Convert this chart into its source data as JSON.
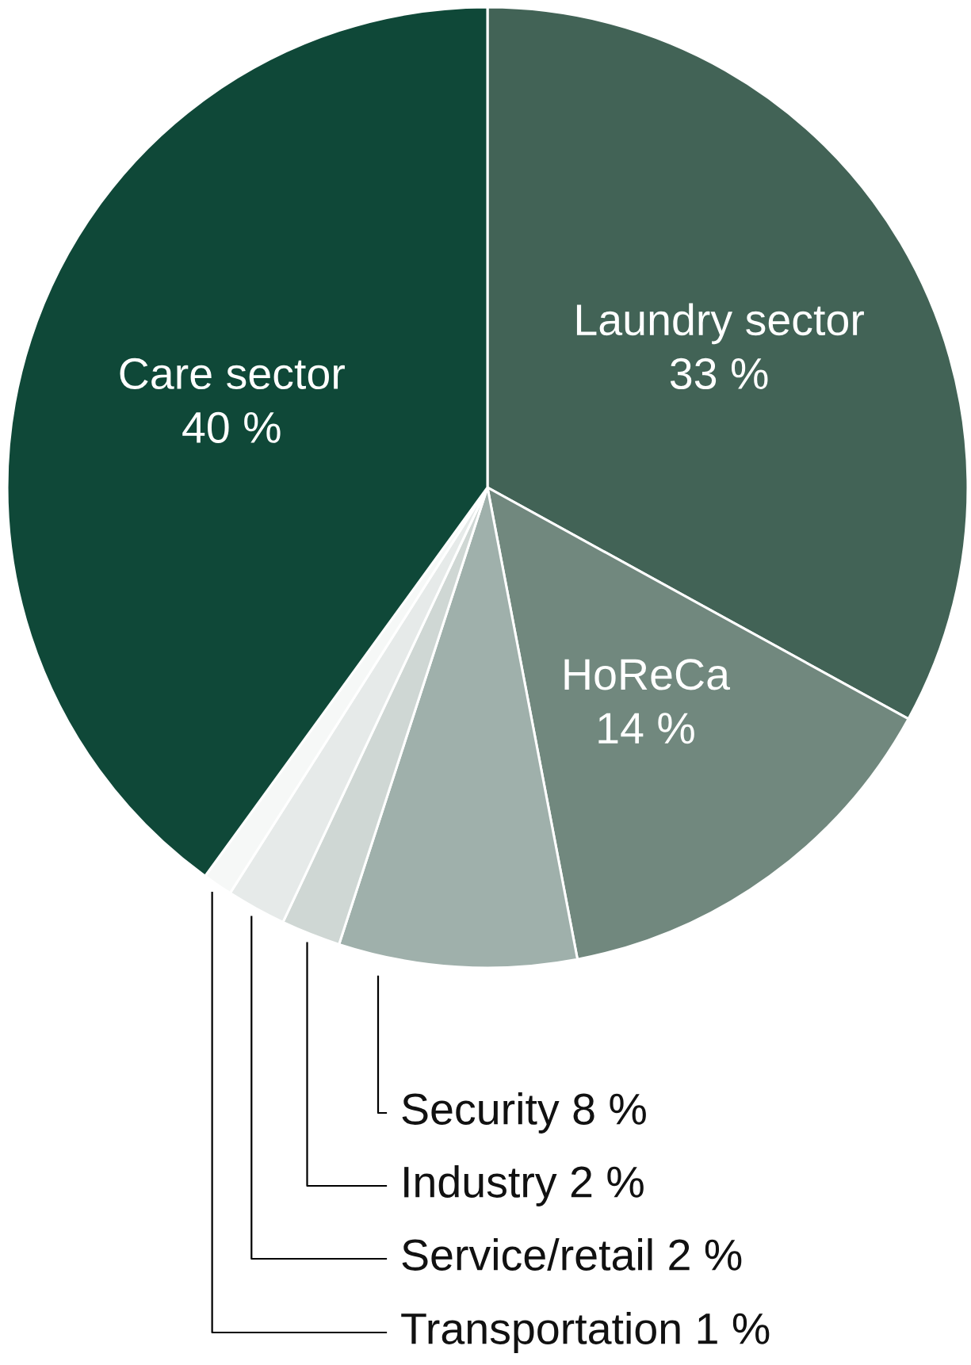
{
  "chart_data": {
    "type": "pie",
    "categories": [
      "Laundry sector",
      "HoReCa",
      "Security",
      "Industry",
      "Service/retail",
      "Transportation",
      "Care sector"
    ],
    "values": [
      33,
      14,
      8,
      2,
      2,
      1,
      40
    ],
    "value_labels": [
      "33 %",
      "14 %",
      "8 %",
      "2 %",
      "2 %",
      "1 %",
      "40 %"
    ],
    "colors": [
      "#426356",
      "#71887e",
      "#9fb0ab",
      "#cfd7d4",
      "#e6eae9",
      "#f6f8f7",
      "#0f4838"
    ]
  }
}
